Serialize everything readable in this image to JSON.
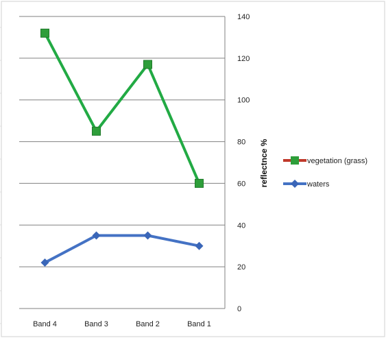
{
  "chart_data": {
    "type": "line",
    "categories": [
      "Band 4",
      "Band 3",
      "Band 2",
      "Band 1"
    ],
    "series": [
      {
        "name": "vegetation (grass)",
        "values": [
          132,
          85,
          117,
          60
        ],
        "color": "#22aa44",
        "marker": "square",
        "marker_color": "#2e9e3a"
      },
      {
        "name": "waters",
        "values": [
          22,
          35,
          35,
          30
        ],
        "color": "#4472c4",
        "marker": "diamond",
        "marker_color": "#3a66b8"
      }
    ],
    "title": "",
    "xlabel": "",
    "ylabel": "reflectnce %",
    "ylim": [
      0,
      140
    ],
    "yticks": [
      0,
      20,
      40,
      60,
      80,
      100,
      120,
      140
    ],
    "y_axis_side": "right",
    "grid": true,
    "legend_position": "right",
    "legend_swatch_color": "#c0392b"
  }
}
